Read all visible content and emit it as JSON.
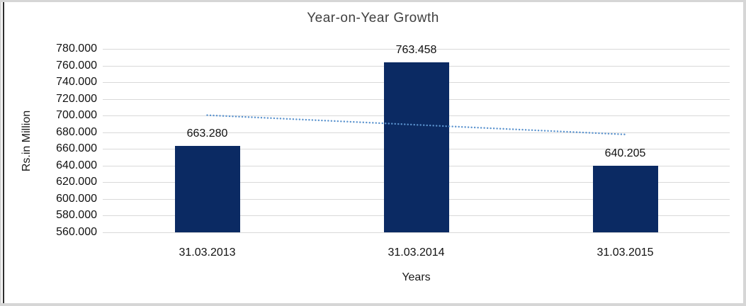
{
  "chart_data": {
    "type": "bar",
    "title": "Year-on-Year Growth",
    "xlabel": "Years",
    "ylabel": "Rs.in Million",
    "categories": [
      "31.03.2013",
      "31.03.2014",
      "31.03.2015"
    ],
    "values": [
      663.28,
      763.458,
      640.205
    ],
    "value_labels": [
      "663.280",
      "763.458",
      "640.205"
    ],
    "ylim": [
      560,
      780
    ],
    "ytick_values": [
      780,
      760,
      740,
      720,
      700,
      680,
      660,
      640,
      620,
      600,
      580,
      560
    ],
    "ytick_labels": [
      "780.000",
      "760.000",
      "740.000",
      "720.000",
      "700.000",
      "680.000",
      "660.000",
      "640.000",
      "620.000",
      "600.000",
      "580.000",
      "560.000"
    ],
    "grid": true,
    "legend": "none",
    "bar_color": "#0B2A63",
    "trendline": {
      "type": "linear",
      "style": "dotted",
      "color": "#5B93CE",
      "start_value": 700.5,
      "end_value": 677.4
    }
  },
  "colors": {
    "gridline": "#D9D9D9",
    "frame": "#D6D6D6",
    "cell_border": "#2F2F2F",
    "title_text": "#404040",
    "axis_text": "#111111"
  }
}
